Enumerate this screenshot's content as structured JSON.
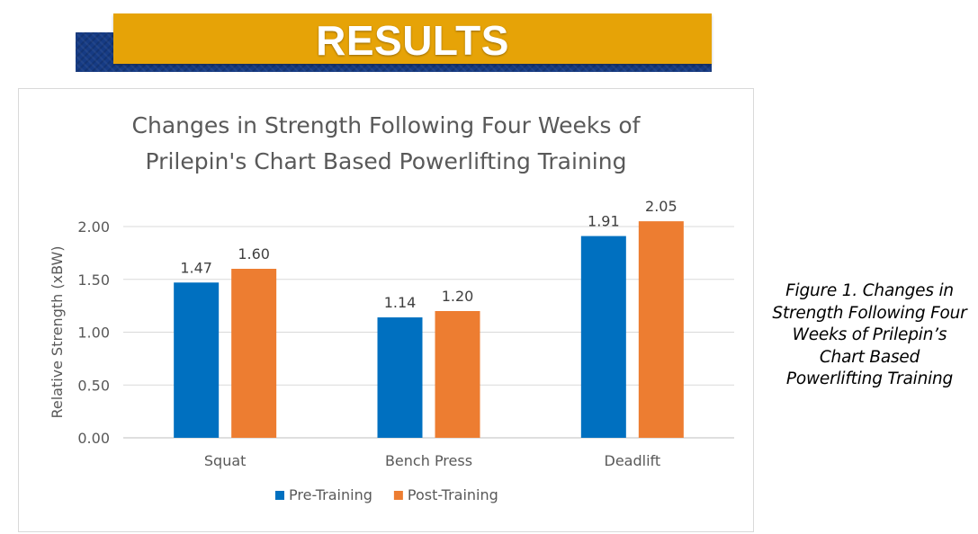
{
  "banner": {
    "title": "RESULTS",
    "colors": {
      "front": "#e6a307",
      "back": "#163b84",
      "text": "#ffffff"
    }
  },
  "caption": {
    "lines": [
      "Figure 1. Changes in",
      "Strength Following Four",
      "Weeks of Prilepin’s",
      "Chart Based",
      "Powerlifting Training"
    ]
  },
  "chart_data": {
    "type": "bar",
    "title_lines": [
      "Changes in Strength Following Four Weeks of",
      "Prilepin's Chart Based Powerlifting Training"
    ],
    "xlabel": "",
    "ylabel": "Relative Strength (xBW)",
    "categories": [
      "Squat",
      "Bench Press",
      "Deadlift"
    ],
    "series": [
      {
        "name": "Pre-Training",
        "color": "#0070c0",
        "values": [
          1.47,
          1.14,
          1.91
        ],
        "labels": [
          "1.47",
          "1.14",
          "1.91"
        ]
      },
      {
        "name": "Post-Training",
        "color": "#ed7d31",
        "values": [
          1.6,
          1.2,
          2.05
        ],
        "labels": [
          "1.60",
          "1.20",
          "2.05"
        ]
      }
    ],
    "ylim": [
      0,
      2.0
    ],
    "yticks": [
      0,
      0.5,
      1.0,
      1.5,
      2.0
    ],
    "ytick_labels": [
      "0.00",
      "0.50",
      "1.00",
      "1.50",
      "2.00"
    ],
    "grid": true,
    "legend_position": "bottom"
  }
}
